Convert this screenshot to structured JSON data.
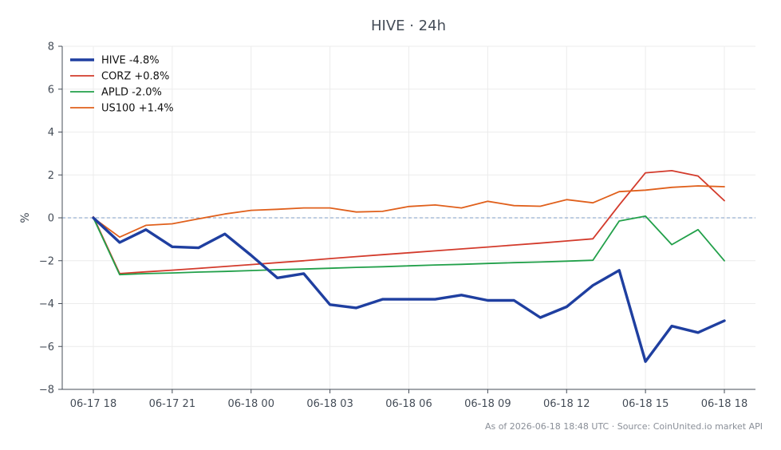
{
  "chart_data": {
    "type": "line",
    "title": "HIVE · 24h",
    "xlabel": "",
    "ylabel": "%",
    "ylim": [
      -8,
      8
    ],
    "yticks": [
      -8,
      -6,
      -4,
      -2,
      0,
      2,
      4,
      6,
      8
    ],
    "x_tick_labels": [
      "06-17 18",
      "06-17 21",
      "06-18 00",
      "06-18 03",
      "06-18 06",
      "06-18 09",
      "06-18 12",
      "06-18 15",
      "06-18 18"
    ],
    "x_tick_hours": [
      0,
      3,
      6,
      9,
      12,
      15,
      18,
      21,
      24
    ],
    "x_hours": [
      0,
      1,
      2,
      3,
      4,
      5,
      6,
      7,
      8,
      9,
      10,
      11,
      12,
      13,
      14,
      15,
      16,
      17,
      18,
      19,
      20,
      21,
      22,
      23,
      24
    ],
    "grid": true,
    "legend_position": "top-left",
    "zero_line": true,
    "series": [
      {
        "name": "HIVE -4.8%",
        "color": "#1f3fa0",
        "bold": true,
        "values": [
          0.0,
          -1.15,
          -0.55,
          -1.35,
          -1.4,
          -0.75,
          -1.75,
          -2.8,
          -2.6,
          -4.05,
          -4.2,
          -3.8,
          -3.8,
          -3.8,
          -3.6,
          -3.85,
          -3.85,
          -4.65,
          -4.15,
          -3.15,
          -2.45,
          -6.7,
          -5.05,
          -5.35,
          -4.8
        ]
      },
      {
        "name": "CORZ +0.8%",
        "color": "#d33b2c",
        "bold": false,
        "values": [
          0.05,
          -2.6,
          -2.52,
          -2.44,
          -2.36,
          -2.27,
          -2.18,
          -2.09,
          -2.0,
          -1.9,
          -1.81,
          -1.72,
          -1.63,
          -1.54,
          -1.45,
          -1.36,
          -1.27,
          -1.18,
          -1.08,
          -0.98,
          0.6,
          2.1,
          2.2,
          1.95,
          0.8
        ]
      },
      {
        "name": "APLD -2.0%",
        "color": "#22a04a",
        "bold": false,
        "values": [
          0.0,
          -2.65,
          -2.6,
          -2.57,
          -2.53,
          -2.5,
          -2.46,
          -2.42,
          -2.39,
          -2.35,
          -2.31,
          -2.28,
          -2.24,
          -2.2,
          -2.17,
          -2.13,
          -2.09,
          -2.06,
          -2.02,
          -1.98,
          -0.15,
          0.08,
          -1.25,
          -0.55,
          -2.0
        ]
      },
      {
        "name": "US100 +1.4%",
        "color": "#e0601c",
        "bold": false,
        "values": [
          0.0,
          -0.9,
          -0.35,
          -0.28,
          -0.05,
          0.18,
          0.35,
          0.4,
          0.46,
          0.46,
          0.27,
          0.3,
          0.53,
          0.6,
          0.46,
          0.77,
          0.57,
          0.54,
          0.85,
          0.7,
          1.22,
          1.29,
          1.42,
          1.49,
          1.45
        ]
      }
    ]
  },
  "footer": {
    "text": "As of 2026-06-18 18:48 UTC · Source: CoinUnited.io market API"
  }
}
